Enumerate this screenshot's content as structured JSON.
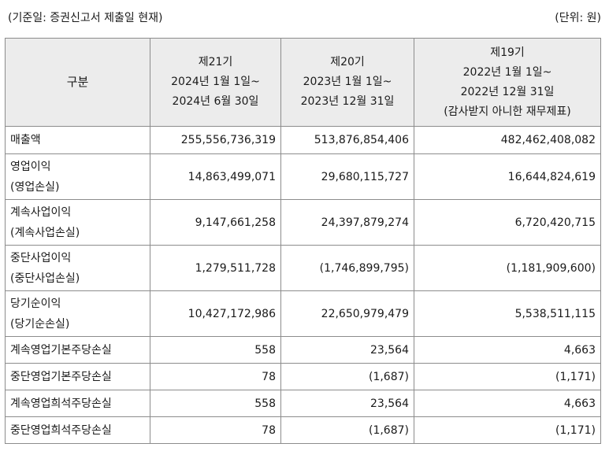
{
  "caption_left": "(기준일: 증권신고서 제출일 현재)",
  "caption_right": "(단위: 원)",
  "header": {
    "label": "구분",
    "periods": [
      {
        "lines": [
          "제21기",
          "2024년 1월 1일~",
          "2024년 6월 30일"
        ]
      },
      {
        "lines": [
          "제20기",
          "2023년 1월 1일~",
          "2023년 12월 31일"
        ]
      },
      {
        "lines": [
          "제19기",
          "2022년 1월 1일~",
          "2022년 12월 31일",
          "(감사받지 아니한 재무제표)"
        ]
      }
    ]
  },
  "rows": [
    {
      "label": [
        "매출액"
      ],
      "values": [
        "255,556,736,319",
        "513,876,854,406",
        "482,462,408,082"
      ]
    },
    {
      "label": [
        "영업이익",
        "(영업손실)"
      ],
      "values": [
        "14,863,499,071",
        "29,680,115,727",
        "16,644,824,619"
      ]
    },
    {
      "label": [
        "계속사업이익",
        "(계속사업손실)"
      ],
      "values": [
        "9,147,661,258",
        "24,397,879,274",
        "6,720,420,715"
      ]
    },
    {
      "label": [
        "중단사업이익",
        "(중단사업손실)"
      ],
      "values": [
        "1,279,511,728",
        "(1,746,899,795)",
        "(1,181,909,600)"
      ]
    },
    {
      "label": [
        "당기순이익",
        "(당기순손실)"
      ],
      "values": [
        "10,427,172,986",
        "22,650,979,479",
        "5,538,511,115"
      ]
    },
    {
      "label": [
        "계속영업기본주당손실"
      ],
      "values": [
        "558",
        "23,564",
        "4,663"
      ]
    },
    {
      "label": [
        "중단영업기본주당손실"
      ],
      "values": [
        "78",
        "(1,687)",
        "(1,171)"
      ]
    },
    {
      "label": [
        "계속영업희석주당손실"
      ],
      "values": [
        "558",
        "23,564",
        "4,663"
      ]
    },
    {
      "label": [
        "중단영업희석주당손실"
      ],
      "values": [
        "78",
        "(1,687)",
        "(1,171)"
      ]
    }
  ]
}
